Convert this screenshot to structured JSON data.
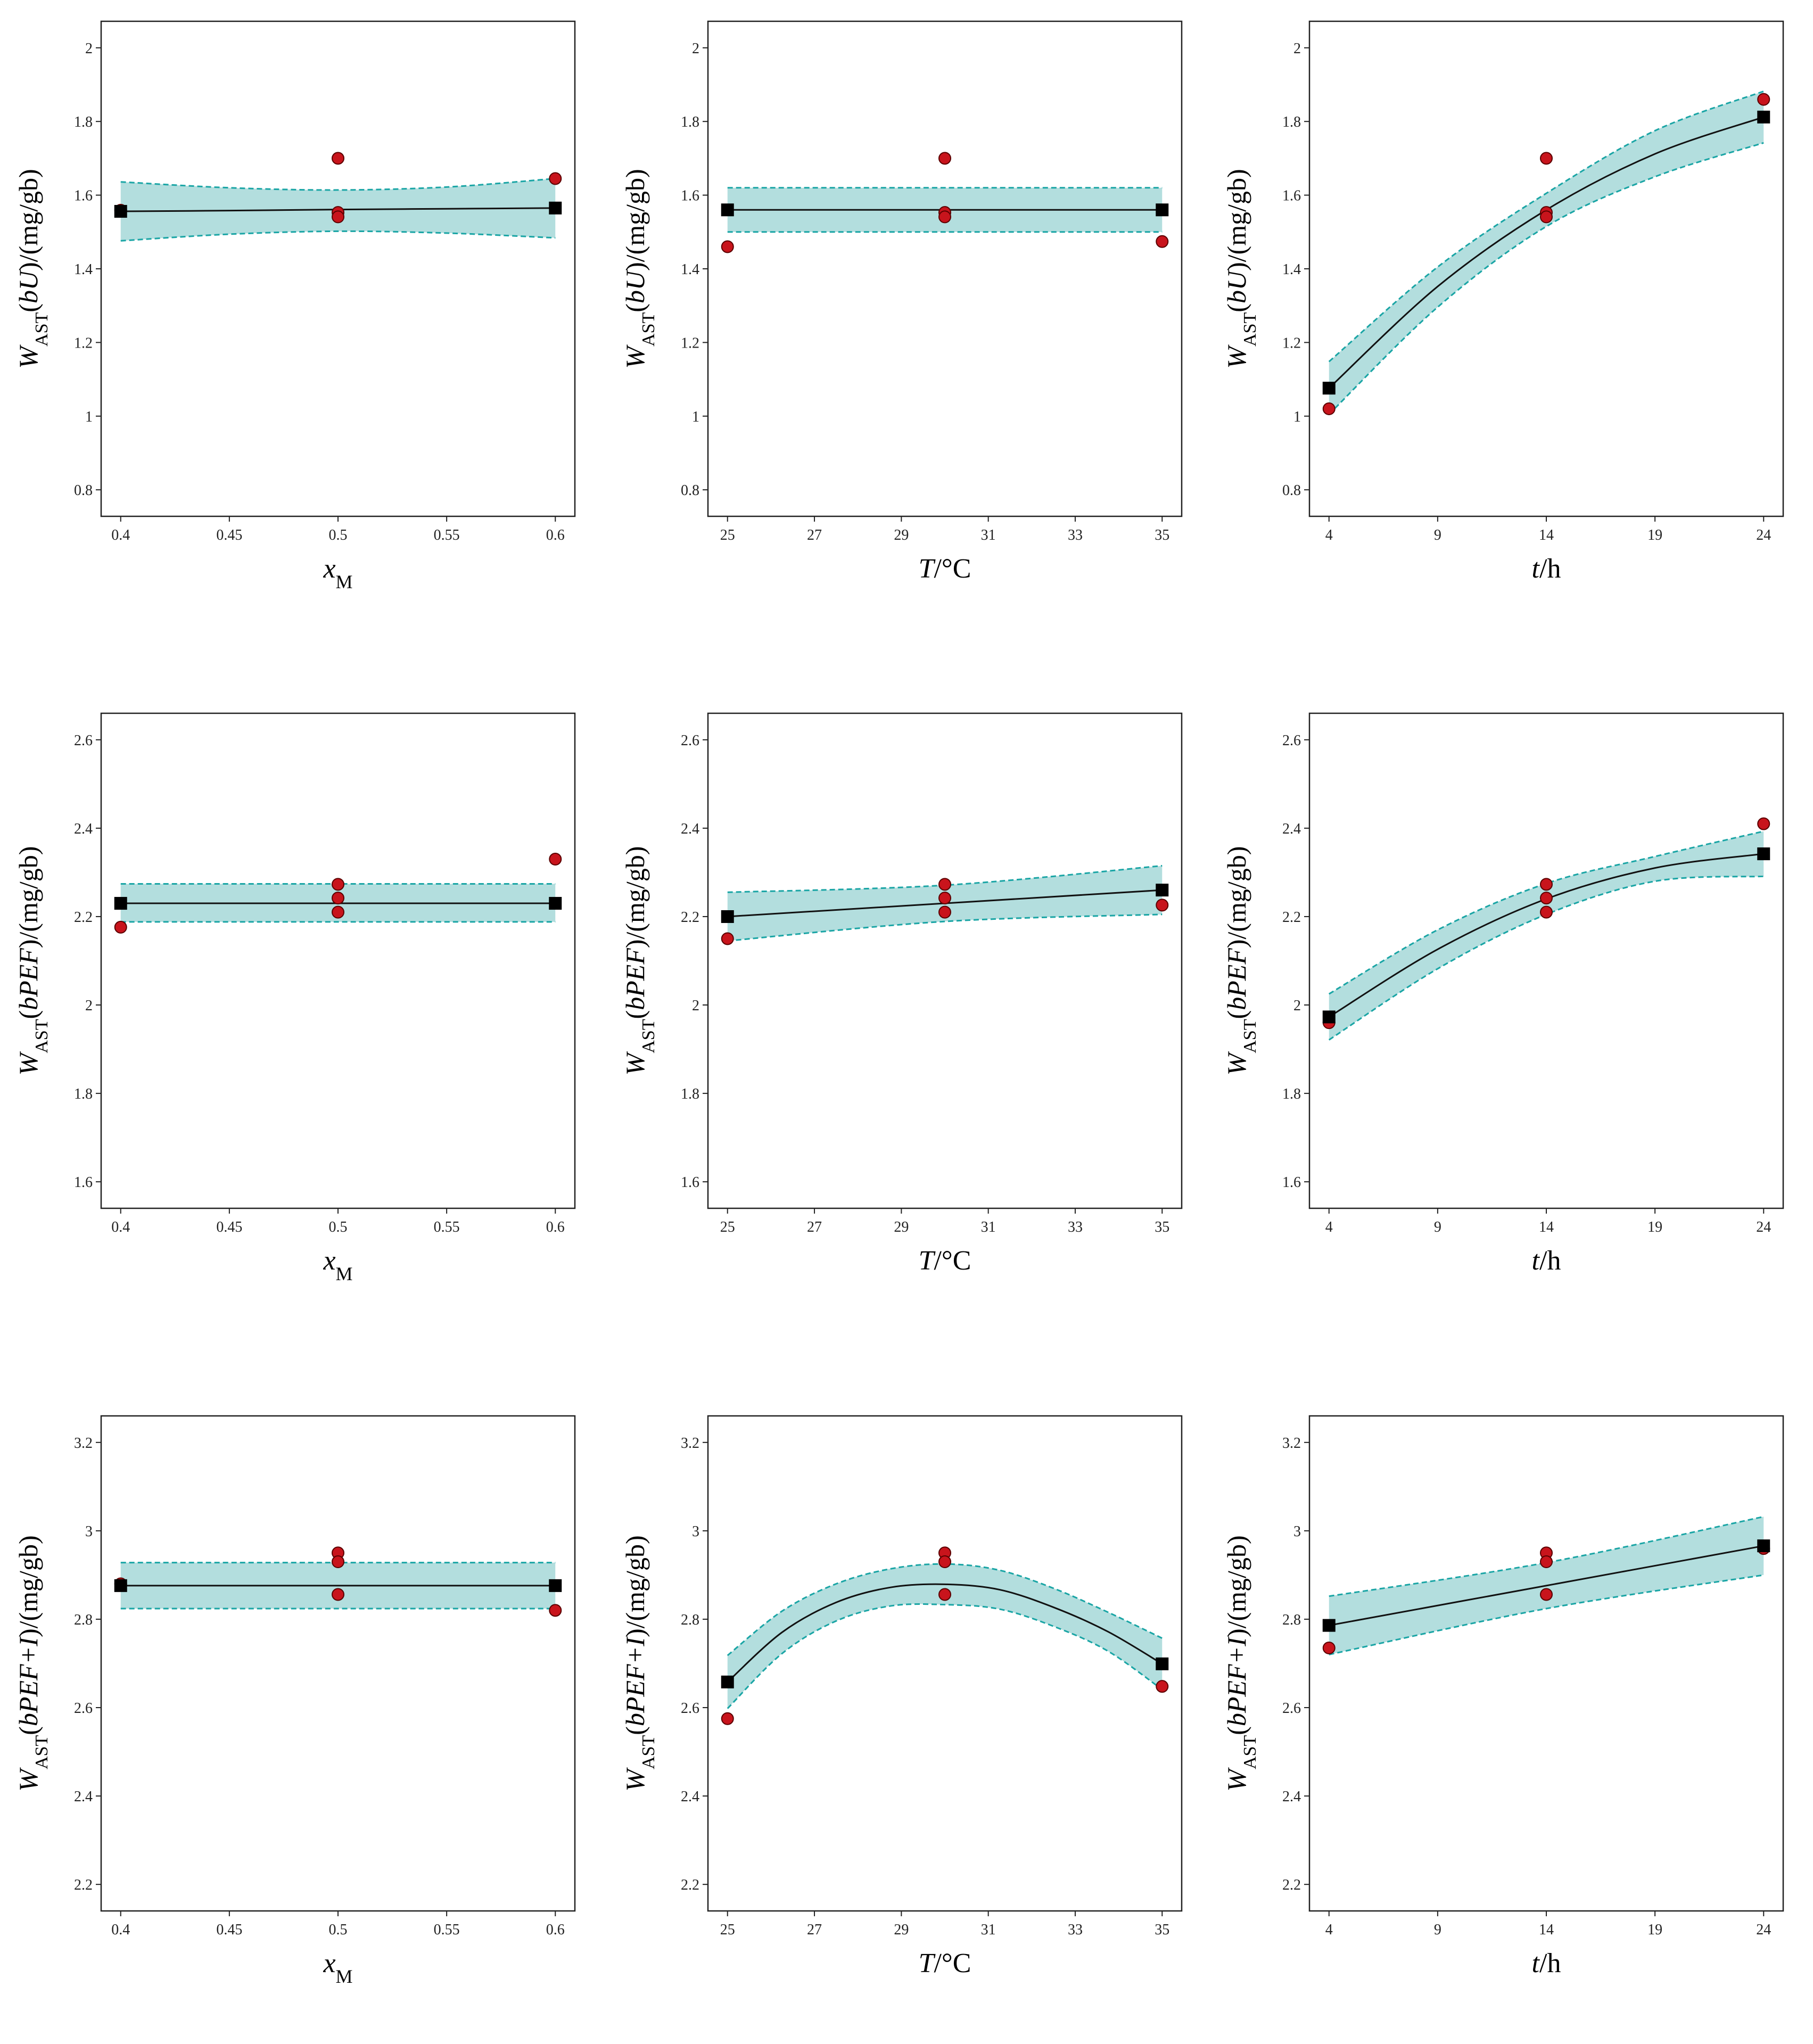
{
  "colors": {
    "band_fill": "#b3dede",
    "band_edge": "#1aa5a5",
    "fit_line": "#111111",
    "observed_point": "#c8141c",
    "predicted_point": "#000000"
  },
  "chart_data": [
    {
      "type": "line",
      "panel": "r0c0",
      "xlabel": "x",
      "xlabel_sub": "M",
      "xlabel_italic": true,
      "ylabel": "W",
      "ylabel_sub": "AST",
      "ylabel_arg": "bU",
      "ylabel_unit": "/(mg/gb)",
      "xlim": [
        0.4,
        0.6
      ],
      "ylim": [
        0.8,
        2
      ],
      "xticks": [
        "0.4",
        "0.45",
        "0.5",
        "0.55",
        "0.6"
      ],
      "xtick_values": [
        0.4,
        0.45,
        0.5,
        0.55,
        0.6
      ],
      "yticks": [
        "0.8",
        "1",
        "1.2",
        "1.4",
        "1.6",
        "1.8",
        "2"
      ],
      "ytick_values": [
        0.8,
        1,
        1.2,
        1.4,
        1.6,
        1.8,
        2
      ],
      "fit": {
        "x": [
          0.4,
          0.45,
          0.5,
          0.55,
          0.6
        ],
        "y": [
          1.556,
          1.558,
          1.561,
          1.563,
          1.565
        ]
      },
      "ci_upper": [
        1.636,
        1.62,
        1.614,
        1.622,
        1.645
      ],
      "ci_lower": [
        1.476,
        1.494,
        1.502,
        1.497,
        1.484
      ],
      "predicted": {
        "x": [
          0.4,
          0.6
        ],
        "y": [
          1.556,
          1.565
        ]
      },
      "observed": {
        "x": [
          0.4,
          0.5,
          0.5,
          0.5,
          0.6
        ],
        "y": [
          1.559,
          1.7,
          1.553,
          1.541,
          1.645
        ]
      }
    },
    {
      "type": "line",
      "panel": "r0c1",
      "xlabel": "T",
      "xlabel_unit": "/°C",
      "xlabel_italic": true,
      "ylabel": "W",
      "ylabel_sub": "AST",
      "ylabel_arg": "bU",
      "ylabel_unit": "/(mg/gb)",
      "xlim": [
        25,
        35
      ],
      "ylim": [
        0.8,
        2
      ],
      "xticks": [
        "25",
        "27",
        "29",
        "31",
        "33",
        "35"
      ],
      "xtick_values": [
        25,
        27,
        29,
        31,
        33,
        35
      ],
      "yticks": [
        "0.8",
        "1",
        "1.2",
        "1.4",
        "1.6",
        "1.8",
        "2"
      ],
      "ytick_values": [
        0.8,
        1,
        1.2,
        1.4,
        1.6,
        1.8,
        2
      ],
      "fit": {
        "x": [
          25,
          30,
          35
        ],
        "y": [
          1.56,
          1.56,
          1.56
        ]
      },
      "ci_upper": [
        1.62,
        1.62,
        1.62
      ],
      "ci_lower": [
        1.5,
        1.5,
        1.5
      ],
      "predicted": {
        "x": [
          25,
          35
        ],
        "y": [
          1.56,
          1.56
        ]
      },
      "observed": {
        "x": [
          25,
          30,
          30,
          30,
          35
        ],
        "y": [
          1.46,
          1.7,
          1.553,
          1.541,
          1.474
        ]
      }
    },
    {
      "type": "line",
      "panel": "r0c2",
      "xlabel": "t",
      "xlabel_unit": "/h",
      "xlabel_italic": true,
      "ylabel": "W",
      "ylabel_sub": "AST",
      "ylabel_arg": "bU",
      "ylabel_unit": "/(mg/gb)",
      "xlim": [
        4,
        24
      ],
      "ylim": [
        0.8,
        2
      ],
      "xticks": [
        "4",
        "9",
        "14",
        "19",
        "24"
      ],
      "xtick_values": [
        4,
        9,
        14,
        19,
        24
      ],
      "yticks": [
        "0.8",
        "1",
        "1.2",
        "1.4",
        "1.6",
        "1.8",
        "2"
      ],
      "ytick_values": [
        0.8,
        1,
        1.2,
        1.4,
        1.6,
        1.8,
        2
      ],
      "fit": {
        "x": [
          4,
          9,
          14,
          19,
          24
        ],
        "y": [
          1.076,
          1.352,
          1.56,
          1.712,
          1.812
        ]
      },
      "ci_upper": [
        1.148,
        1.405,
        1.605,
        1.775,
        1.882
      ],
      "ci_lower": [
        1.005,
        1.296,
        1.515,
        1.65,
        1.742
      ],
      "predicted": {
        "x": [
          4,
          24
        ],
        "y": [
          1.076,
          1.812
        ]
      },
      "observed": {
        "x": [
          4,
          14,
          14,
          14,
          24
        ],
        "y": [
          1.02,
          1.7,
          1.553,
          1.541,
          1.86
        ]
      }
    },
    {
      "type": "line",
      "panel": "r1c0",
      "xlabel": "x",
      "xlabel_sub": "M",
      "xlabel_italic": true,
      "ylabel": "W",
      "ylabel_sub": "AST",
      "ylabel_arg": "bPEF",
      "ylabel_unit": "/(mg/gb)",
      "xlim": [
        0.4,
        0.6
      ],
      "ylim": [
        1.6,
        2.6
      ],
      "xticks": [
        "0.4",
        "0.45",
        "0.5",
        "0.55",
        "0.6"
      ],
      "xtick_values": [
        0.4,
        0.45,
        0.5,
        0.55,
        0.6
      ],
      "yticks": [
        "1.6",
        "1.8",
        "2",
        "2.2",
        "2.4",
        "2.6"
      ],
      "ytick_values": [
        1.6,
        1.8,
        2,
        2.2,
        2.4,
        2.6
      ],
      "fit": {
        "x": [
          0.4,
          0.5,
          0.6
        ],
        "y": [
          2.23,
          2.23,
          2.23
        ]
      },
      "ci_upper": [
        2.274,
        2.274,
        2.274
      ],
      "ci_lower": [
        2.188,
        2.188,
        2.188
      ],
      "predicted": {
        "x": [
          0.4,
          0.6
        ],
        "y": [
          2.23,
          2.23
        ]
      },
      "observed": {
        "x": [
          0.4,
          0.5,
          0.5,
          0.5,
          0.6
        ],
        "y": [
          2.176,
          2.273,
          2.242,
          2.21,
          2.33
        ]
      }
    },
    {
      "type": "line",
      "panel": "r1c1",
      "xlabel": "T",
      "xlabel_unit": "/°C",
      "xlabel_italic": true,
      "ylabel": "W",
      "ylabel_sub": "AST",
      "ylabel_arg": "bPEF",
      "ylabel_unit": "/(mg/gb)",
      "xlim": [
        25,
        35
      ],
      "ylim": [
        1.6,
        2.6
      ],
      "xticks": [
        "25",
        "27",
        "29",
        "31",
        "33",
        "35"
      ],
      "xtick_values": [
        25,
        27,
        29,
        31,
        33,
        35
      ],
      "yticks": [
        "1.6",
        "1.8",
        "2",
        "2.2",
        "2.4",
        "2.6"
      ],
      "ytick_values": [
        1.6,
        1.8,
        2,
        2.2,
        2.4,
        2.6
      ],
      "fit": {
        "x": [
          25,
          30,
          35
        ],
        "y": [
          2.2,
          2.23,
          2.26
        ]
      },
      "ci_upper": [
        2.255,
        2.271,
        2.315
      ],
      "ci_lower": [
        2.145,
        2.189,
        2.205
      ],
      "predicted": {
        "x": [
          25,
          35
        ],
        "y": [
          2.2,
          2.26
        ]
      },
      "observed": {
        "x": [
          25,
          30,
          30,
          30,
          35
        ],
        "y": [
          2.15,
          2.273,
          2.242,
          2.21,
          2.226
        ]
      }
    },
    {
      "type": "line",
      "panel": "r1c2",
      "xlabel": "t",
      "xlabel_unit": "/h",
      "xlabel_italic": true,
      "ylabel": "W",
      "ylabel_sub": "AST",
      "ylabel_arg": "bPEF",
      "ylabel_unit": "/(mg/gb)",
      "xlim": [
        4,
        24
      ],
      "ylim": [
        1.6,
        2.6
      ],
      "xticks": [
        "4",
        "9",
        "14",
        "19",
        "24"
      ],
      "xtick_values": [
        4,
        9,
        14,
        19,
        24
      ],
      "yticks": [
        "1.6",
        "1.8",
        "2",
        "2.2",
        "2.4",
        "2.6"
      ],
      "ytick_values": [
        1.6,
        1.8,
        2,
        2.2,
        2.4,
        2.6
      ],
      "fit": {
        "x": [
          4,
          9,
          14,
          19,
          24
        ],
        "y": [
          1.973,
          2.126,
          2.24,
          2.31,
          2.342
        ]
      },
      "ci_upper": [
        2.025,
        2.17,
        2.275,
        2.336,
        2.393
      ],
      "ci_lower": [
        1.921,
        2.082,
        2.205,
        2.28,
        2.291
      ],
      "predicted": {
        "x": [
          4,
          24
        ],
        "y": [
          1.973,
          2.342
        ]
      },
      "observed": {
        "x": [
          4,
          14,
          14,
          14,
          24
        ],
        "y": [
          1.96,
          2.273,
          2.242,
          2.21,
          2.41
        ]
      }
    },
    {
      "type": "line",
      "panel": "r2c0",
      "xlabel": "x",
      "xlabel_sub": "M",
      "xlabel_italic": true,
      "ylabel": "W",
      "ylabel_sub": "AST",
      "ylabel_arg": "bPEF+I",
      "ylabel_unit": "/(mg/gb)",
      "xlim": [
        0.4,
        0.6
      ],
      "ylim": [
        2.2,
        3.2
      ],
      "xticks": [
        "0.4",
        "0.45",
        "0.5",
        "0.55",
        "0.6"
      ],
      "xtick_values": [
        0.4,
        0.45,
        0.5,
        0.55,
        0.6
      ],
      "yticks": [
        "2.2",
        "2.4",
        "2.6",
        "2.8",
        "3",
        "3.2"
      ],
      "ytick_values": [
        2.2,
        2.4,
        2.6,
        2.8,
        3,
        3.2
      ],
      "fit": {
        "x": [
          0.4,
          0.5,
          0.6
        ],
        "y": [
          2.876,
          2.876,
          2.876
        ]
      },
      "ci_upper": [
        2.928,
        2.928,
        2.928
      ],
      "ci_lower": [
        2.824,
        2.824,
        2.824
      ],
      "predicted": {
        "x": [
          0.4,
          0.6
        ],
        "y": [
          2.876,
          2.876
        ]
      },
      "observed": {
        "x": [
          0.4,
          0.5,
          0.5,
          0.5,
          0.6
        ],
        "y": [
          2.88,
          2.95,
          2.93,
          2.856,
          2.82
        ]
      }
    },
    {
      "type": "line",
      "panel": "r2c1",
      "xlabel": "T",
      "xlabel_unit": "/°C",
      "xlabel_italic": true,
      "ylabel": "W",
      "ylabel_sub": "AST",
      "ylabel_arg": "bPEF+I",
      "ylabel_unit": "/(mg/gb)",
      "xlim": [
        25,
        35
      ],
      "ylim": [
        2.2,
        3.2
      ],
      "xticks": [
        "25",
        "27",
        "29",
        "31",
        "33",
        "35"
      ],
      "xtick_values": [
        25,
        27,
        29,
        31,
        33,
        35
      ],
      "yticks": [
        "2.2",
        "2.4",
        "2.6",
        "2.8",
        "3",
        "3.2"
      ],
      "ytick_values": [
        2.2,
        2.4,
        2.6,
        2.8,
        3,
        3.2
      ],
      "fit": {
        "x": [
          25,
          26.25,
          27.5,
          28.75,
          30,
          31.25,
          32.5,
          33.75,
          35
        ],
        "y": [
          2.658,
          2.77,
          2.838,
          2.872,
          2.879,
          2.867,
          2.827,
          2.772,
          2.699
        ]
      },
      "ci_upper": [
        2.718,
        2.818,
        2.88,
        2.914,
        2.925,
        2.911,
        2.87,
        2.816,
        2.757
      ],
      "ci_lower": [
        2.598,
        2.722,
        2.796,
        2.83,
        2.833,
        2.823,
        2.784,
        2.728,
        2.641
      ],
      "predicted": {
        "x": [
          25,
          35
        ],
        "y": [
          2.658,
          2.699
        ]
      },
      "observed": {
        "x": [
          25,
          30,
          30,
          30,
          35
        ],
        "y": [
          2.575,
          2.95,
          2.93,
          2.856,
          2.648
        ]
      }
    },
    {
      "type": "line",
      "panel": "r2c2",
      "xlabel": "t",
      "xlabel_unit": "/h",
      "xlabel_italic": true,
      "ylabel": "W",
      "ylabel_sub": "AST",
      "ylabel_arg": "bPEF+I",
      "ylabel_unit": "/(mg/gb)",
      "xlim": [
        4,
        24
      ],
      "ylim": [
        2.2,
        3.2
      ],
      "xticks": [
        "4",
        "9",
        "14",
        "19",
        "24"
      ],
      "xtick_values": [
        4,
        9,
        14,
        19,
        24
      ],
      "yticks": [
        "2.2",
        "2.4",
        "2.6",
        "2.8",
        "3",
        "3.2"
      ],
      "ytick_values": [
        2.2,
        2.4,
        2.6,
        2.8,
        3,
        3.2
      ],
      "fit": {
        "x": [
          4,
          14,
          24
        ],
        "y": [
          2.786,
          2.876,
          2.966
        ]
      },
      "ci_upper": [
        2.852,
        2.928,
        3.032
      ],
      "ci_lower": [
        2.72,
        2.824,
        2.9
      ],
      "predicted": {
        "x": [
          4,
          24
        ],
        "y": [
          2.786,
          2.966
        ]
      },
      "observed": {
        "x": [
          4,
          14,
          14,
          14,
          24
        ],
        "y": [
          2.735,
          2.95,
          2.93,
          2.856,
          2.96
        ]
      }
    }
  ]
}
